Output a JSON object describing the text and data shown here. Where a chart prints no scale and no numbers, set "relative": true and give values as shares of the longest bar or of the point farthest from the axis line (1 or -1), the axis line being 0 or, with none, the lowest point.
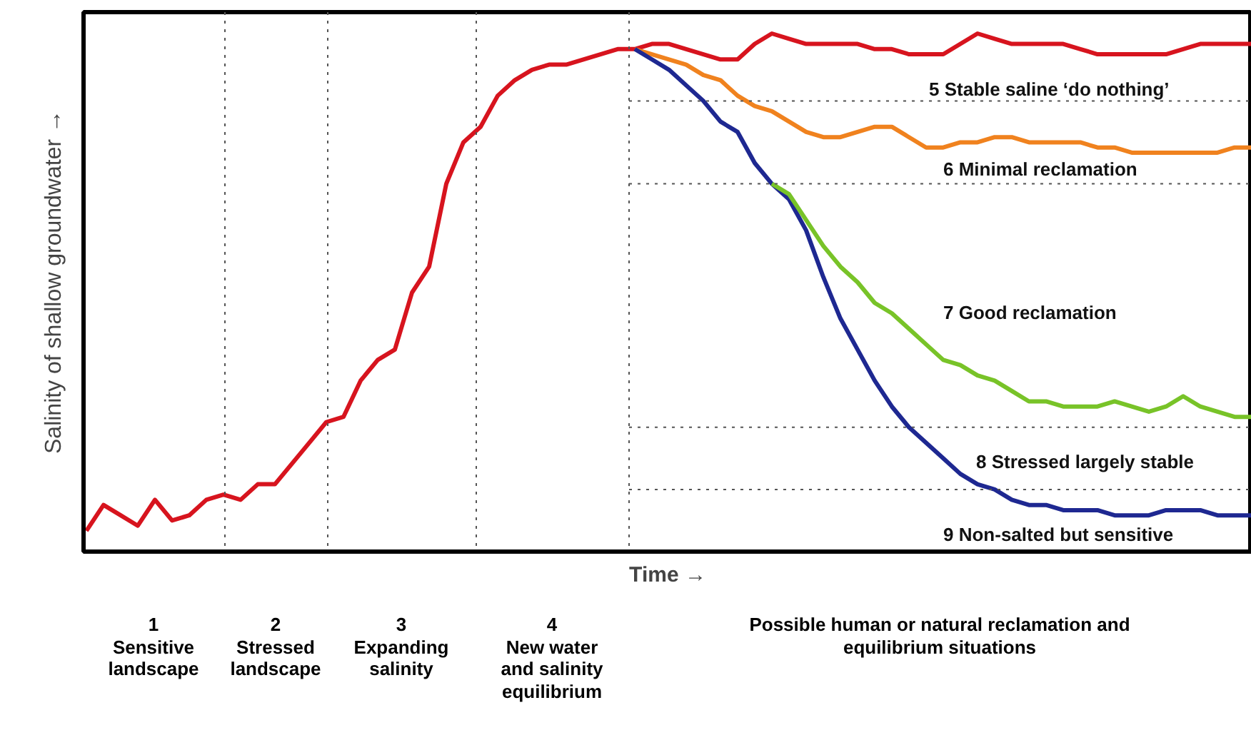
{
  "chart_data": {
    "type": "line",
    "relative": true,
    "xlabel": "Time →",
    "ylabel": "Salinity of shallow groundwater →",
    "line_style": "solid",
    "marker": "none",
    "categories": [
      null,
      null,
      null,
      null,
      null,
      null,
      null,
      null,
      null,
      null,
      null,
      null,
      null,
      null,
      null,
      null,
      null,
      null,
      null,
      null,
      null,
      null,
      null,
      null,
      null,
      null,
      null,
      null,
      null,
      null,
      null,
      null,
      null,
      null,
      null,
      null,
      null,
      null,
      null,
      null,
      null,
      null,
      null,
      null,
      null,
      null,
      null,
      null,
      null,
      null,
      null,
      null,
      null,
      null,
      null,
      null,
      null,
      null,
      null,
      null,
      null,
      null,
      null,
      null,
      null,
      null,
      null,
      null,
      null
    ],
    "series": [
      {
        "color": "#d7141e",
        "values": [
          0.04,
          0.09,
          0.07,
          0.05,
          0.1,
          0.06,
          0.07,
          0.1,
          0.11,
          0.1,
          0.13,
          0.13,
          0.17,
          0.21,
          0.25,
          0.26,
          0.33,
          0.37,
          0.39,
          0.5,
          0.55,
          0.71,
          0.79,
          0.82,
          0.88,
          0.91,
          0.93,
          0.94,
          0.94,
          0.95,
          0.96,
          0.97,
          0.97,
          0.98,
          0.98,
          0.97,
          0.96,
          0.95,
          0.95,
          0.98,
          1.0,
          0.99,
          0.98,
          0.98,
          0.98,
          0.98,
          0.97,
          0.97,
          0.96,
          0.96,
          0.96,
          0.98,
          1.0,
          0.99,
          0.98,
          0.98,
          0.98,
          0.98,
          0.97,
          0.96,
          0.96,
          0.96,
          0.96,
          0.96,
          0.97,
          0.98,
          0.98,
          0.98,
          0.98
        ]
      },
      {
        "color": "#f0821e",
        "values": [
          null,
          null,
          null,
          null,
          null,
          null,
          null,
          null,
          null,
          null,
          null,
          null,
          null,
          null,
          null,
          null,
          null,
          null,
          null,
          null,
          null,
          null,
          null,
          null,
          null,
          null,
          null,
          null,
          null,
          null,
          null,
          null,
          0.97,
          0.96,
          0.95,
          0.94,
          0.92,
          0.91,
          0.88,
          0.86,
          0.85,
          0.83,
          0.81,
          0.8,
          0.8,
          0.81,
          0.82,
          0.82,
          0.8,
          0.78,
          0.78,
          0.79,
          0.79,
          0.8,
          0.8,
          0.79,
          0.79,
          0.79,
          0.79,
          0.78,
          0.78,
          0.77,
          0.77,
          0.77,
          0.77,
          0.77,
          0.77,
          0.78,
          0.78
        ]
      },
      {
        "color": "#1e2891",
        "values": [
          null,
          null,
          null,
          null,
          null,
          null,
          null,
          null,
          null,
          null,
          null,
          null,
          null,
          null,
          null,
          null,
          null,
          null,
          null,
          null,
          null,
          null,
          null,
          null,
          null,
          null,
          null,
          null,
          null,
          null,
          null,
          null,
          0.97,
          0.95,
          0.93,
          0.9,
          0.87,
          0.83,
          0.81,
          0.75,
          0.71,
          0.68,
          0.62,
          0.53,
          0.45,
          0.39,
          0.33,
          0.28,
          0.24,
          0.21,
          0.18,
          0.15,
          0.13,
          0.12,
          0.1,
          0.09,
          0.09,
          0.08,
          0.08,
          0.08,
          0.07,
          0.07,
          0.07,
          0.08,
          0.08,
          0.08,
          0.07,
          0.07,
          0.07
        ]
      },
      {
        "color": "#78c328",
        "values": [
          null,
          null,
          null,
          null,
          null,
          null,
          null,
          null,
          null,
          null,
          null,
          null,
          null,
          null,
          null,
          null,
          null,
          null,
          null,
          null,
          null,
          null,
          null,
          null,
          null,
          null,
          null,
          null,
          null,
          null,
          null,
          null,
          null,
          null,
          null,
          null,
          null,
          null,
          null,
          null,
          0.71,
          0.69,
          0.64,
          0.59,
          0.55,
          0.52,
          0.48,
          0.46,
          0.43,
          0.4,
          0.37,
          0.36,
          0.34,
          0.33,
          0.31,
          0.29,
          0.29,
          0.28,
          0.28,
          0.28,
          0.29,
          0.28,
          0.27,
          0.28,
          0.3,
          0.28,
          0.27,
          0.26,
          0.26
        ]
      }
    ],
    "ref_lines": [
      {
        "axis": "y",
        "value": 0.87,
        "label": null
      },
      {
        "axis": "y",
        "value": 0.71,
        "label": null
      },
      {
        "axis": "y",
        "value": 0.24,
        "label": null
      },
      {
        "axis": "y",
        "value": 0.12,
        "label": null
      }
    ],
    "annotations": [
      "1\nSensitive\nlandscape",
      "2\nStressed\nlandscape",
      "3\nExpanding\nsalinity",
      "4\nNew water\nand salinity\nequilibrium",
      "Possible human or natural reclamation and\nequilibrium situations",
      "5 Stable saline ‘do nothing’",
      "6 Minimal reclamation",
      "7 Good reclamation",
      "8 Stressed largely stable",
      "9 Non-salted but sensitive"
    ]
  }
}
